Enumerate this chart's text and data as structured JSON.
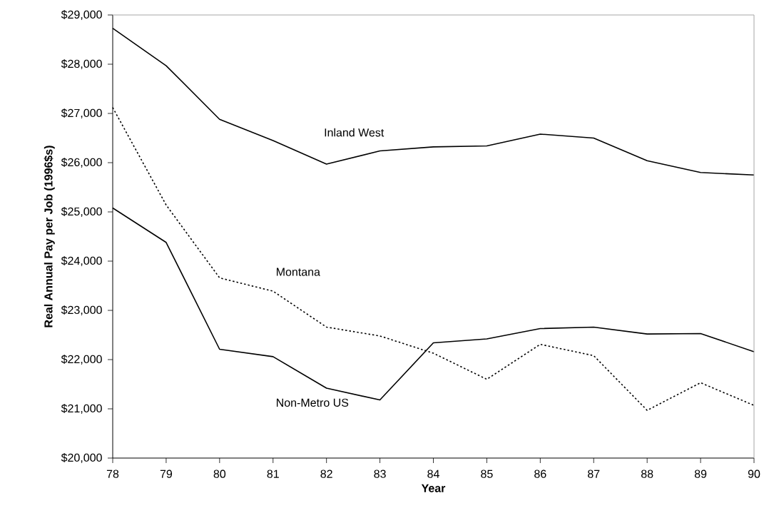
{
  "chart_data": {
    "type": "line",
    "xlabel": "Year",
    "ylabel": "Real Annual Pay per Job (1996$s)",
    "categories": [
      "78",
      "79",
      "80",
      "81",
      "82",
      "83",
      "84",
      "85",
      "86",
      "87",
      "88",
      "89",
      "90"
    ],
    "series": [
      {
        "name": "Inland West",
        "color": "#000000",
        "line_style": "solid",
        "values": [
          28730,
          27970,
          26880,
          26450,
          25970,
          26240,
          26320,
          26340,
          26580,
          26500,
          26040,
          25800,
          25750
        ]
      },
      {
        "name": "Montana",
        "color": "#000000",
        "line_style": "dotted",
        "values": [
          27120,
          25140,
          23660,
          23390,
          22660,
          22480,
          22130,
          21600,
          22310,
          22080,
          20970,
          21530,
          21070
        ]
      },
      {
        "name": "Non-Metro US",
        "color": "#000000",
        "line_style": "solid",
        "values": [
          25080,
          24380,
          22210,
          22060,
          21420,
          21180,
          22340,
          22420,
          22630,
          22660,
          22520,
          22530,
          22160
        ]
      }
    ],
    "ylim": [
      20000,
      29000
    ],
    "yticks": [
      {
        "value": 20000,
        "label": "$20,000"
      },
      {
        "value": 21000,
        "label": "$21,000"
      },
      {
        "value": 22000,
        "label": "$22,000"
      },
      {
        "value": 23000,
        "label": "$23,000"
      },
      {
        "value": 24000,
        "label": "$24,000"
      },
      {
        "value": 25000,
        "label": "$25,000"
      },
      {
        "value": 26000,
        "label": "$26,000"
      },
      {
        "value": 27000,
        "label": "$27,000"
      },
      {
        "value": 28000,
        "label": "$28,000"
      },
      {
        "value": 29000,
        "label": "$29,000"
      }
    ],
    "grid": false,
    "legend": false,
    "marker": "none"
  }
}
